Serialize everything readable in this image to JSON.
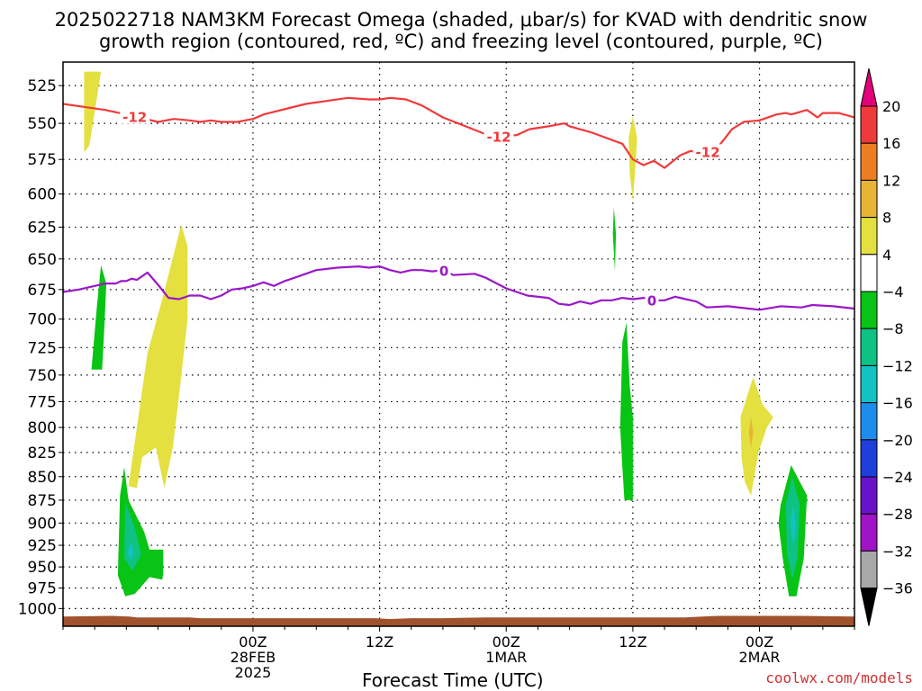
{
  "title_line1": "2025022718 NAM3KM Forecast Omega (shaded, μbar/s) for KVAD with dendritic snow",
  "title_line2": "growth region (contoured, red, ºC) and freezing level (contoured, purple, ºC)",
  "credit": "coolwx.com/models",
  "chart_data": {
    "type": "heatmap",
    "title": "2025022718 NAM3KM Forecast Omega (shaded, μbar/s) for KVAD with dendritic snow growth region (contoured, red, ºC) and freezing level (contoured, purple, ºC)",
    "xlabel": "Forecast Time (UTC)",
    "ylabel": "",
    "x_axis": {
      "unit": "forecast hour",
      "range": [
        -12,
        63
      ],
      "ticks": [
        {
          "hour": 6,
          "label1": "00Z",
          "label2": "28FEB",
          "label3": "2025"
        },
        {
          "hour": 18,
          "label1": "12Z",
          "label2": "",
          "label3": ""
        },
        {
          "hour": 30,
          "label1": "00Z",
          "label2": "1MAR",
          "label3": ""
        },
        {
          "hour": 42,
          "label1": "12Z",
          "label2": "",
          "label3": ""
        },
        {
          "hour": 54,
          "label1": "00Z",
          "label2": "2MAR",
          "label3": ""
        }
      ],
      "grid": true
    },
    "y_axis": {
      "unit": "hPa",
      "scale": "log",
      "range": [
        1022,
        510
      ],
      "ticks": [
        525,
        550,
        575,
        600,
        625,
        650,
        675,
        700,
        725,
        750,
        775,
        800,
        825,
        850,
        875,
        900,
        925,
        950,
        975,
        1000
      ],
      "grid": true
    },
    "colorbar": {
      "levels": [
        20,
        16,
        12,
        8,
        4,
        -4,
        -8,
        -12,
        -16,
        -20,
        -24,
        -28,
        -32,
        -36
      ],
      "colors": [
        "#e3007b",
        "#f0393a",
        "#ed7d23",
        "#e8b436",
        "#e3e040",
        "#ffffff",
        "#08c414",
        "#0ec284",
        "#12c2c2",
        "#1c8ced",
        "#1e3fd9",
        "#6813c9",
        "#a013c7",
        "#a8a8a8",
        "#000000"
      ]
    },
    "omega_regions": [
      {
        "level": "4",
        "color": "#e3e040",
        "points": [
          [
            -10,
            516
          ],
          [
            -8.4,
            516
          ],
          [
            -9.5,
            565
          ],
          [
            -10,
            570
          ]
        ]
      },
      {
        "level": "4",
        "color": "#e3e040",
        "points": [
          [
            -5.8,
            860
          ],
          [
            -4,
            730
          ],
          [
            -2.5,
            680
          ],
          [
            -0.8,
            623
          ],
          [
            -0.2,
            640
          ],
          [
            -0.2,
            700
          ],
          [
            -0.9,
            760
          ],
          [
            -1.6,
            820
          ],
          [
            -2.4,
            862
          ],
          [
            -3.2,
            820
          ],
          [
            -4.5,
            830
          ],
          [
            -5.0,
            862
          ]
        ]
      },
      {
        "level": "4",
        "color": "#e3e040",
        "points": [
          [
            42,
            545
          ],
          [
            42.4,
            560
          ],
          [
            42.2,
            585
          ],
          [
            42,
            605
          ],
          [
            41.7,
            585
          ],
          [
            41.6,
            560
          ]
        ]
      },
      {
        "level": "4",
        "color": "#e3e040",
        "points": [
          [
            52.2,
            790
          ],
          [
            53.4,
            752
          ],
          [
            54.3,
            778
          ],
          [
            55.3,
            790
          ],
          [
            54.7,
            800
          ],
          [
            53.9,
            825
          ],
          [
            53.2,
            870
          ],
          [
            52.6,
            855
          ],
          [
            52.3,
            830
          ]
        ]
      },
      {
        "level": "8",
        "color": "#e8b436",
        "points": [
          [
            53.2,
            790
          ],
          [
            53.4,
            805
          ],
          [
            53.2,
            820
          ],
          [
            53.0,
            805
          ]
        ]
      },
      {
        "level": "-4",
        "color": "#08c414",
        "points": [
          [
            -9.3,
            745
          ],
          [
            -8.8,
            690
          ],
          [
            -8.4,
            655
          ],
          [
            -7.9,
            670
          ],
          [
            -8.1,
            710
          ],
          [
            -8.3,
            745
          ]
        ]
      },
      {
        "level": "-4",
        "color": "#08c414",
        "points": [
          [
            -6.6,
            870
          ],
          [
            -6.2,
            840
          ],
          [
            -5.8,
            875
          ],
          [
            -4.3,
            910
          ],
          [
            -3.8,
            930
          ],
          [
            -2.5,
            930
          ],
          [
            -2.5,
            958
          ],
          [
            -2.6,
            965
          ],
          [
            -3.8,
            962
          ],
          [
            -5.2,
            982
          ],
          [
            -6.1,
            985
          ],
          [
            -6.8,
            960
          ]
        ]
      },
      {
        "level": "-8",
        "color": "#0ec284",
        "points": [
          [
            -6.1,
            877
          ],
          [
            -5.2,
            905
          ],
          [
            -4.6,
            935
          ],
          [
            -5.4,
            955
          ],
          [
            -6.2,
            940
          ]
        ]
      },
      {
        "level": "-12",
        "color": "#12c2c2",
        "points": [
          [
            -5.6,
            922
          ],
          [
            -5.3,
            933
          ],
          [
            -5.6,
            942
          ],
          [
            -5.9,
            933
          ]
        ]
      },
      {
        "level": "-4",
        "color": "#08c414",
        "points": [
          [
            40.2,
            610
          ],
          [
            40.4,
            630
          ],
          [
            40.3,
            660
          ],
          [
            40.1,
            630
          ]
        ]
      },
      {
        "level": "-4",
        "color": "#08c414",
        "points": [
          [
            41.0,
            720
          ],
          [
            41.4,
            703
          ],
          [
            41.7,
            760
          ],
          [
            42.0,
            790
          ],
          [
            42.0,
            875
          ],
          [
            41.2,
            875
          ],
          [
            41.0,
            840
          ],
          [
            40.8,
            800
          ]
        ]
      },
      {
        "level": "-4",
        "color": "#08c414",
        "points": [
          [
            56.0,
            880
          ],
          [
            57.0,
            838
          ],
          [
            58.5,
            870
          ],
          [
            58.2,
            940
          ],
          [
            57.5,
            985
          ],
          [
            56.8,
            985
          ],
          [
            56.2,
            940
          ],
          [
            55.8,
            900
          ]
        ]
      },
      {
        "level": "-8",
        "color": "#0ec284",
        "points": [
          [
            56.5,
            880
          ],
          [
            57.1,
            850
          ],
          [
            57.8,
            880
          ],
          [
            57.6,
            940
          ],
          [
            57.1,
            965
          ],
          [
            56.6,
            935
          ]
        ]
      },
      {
        "level": "-12",
        "color": "#12c2c2",
        "points": [
          [
            56.9,
            900
          ],
          [
            57.2,
            880
          ],
          [
            57.5,
            905
          ],
          [
            57.2,
            925
          ]
        ]
      }
    ],
    "terrain": {
      "color": "#a0522d",
      "points": [
        [
          -12,
          1010
        ],
        [
          -7.4,
          1009
        ],
        [
          -5.7,
          1010
        ],
        [
          -5,
          1011
        ],
        [
          0,
          1011
        ],
        [
          1,
          1012
        ],
        [
          17.5,
          1012
        ],
        [
          19,
          1013
        ],
        [
          21,
          1012
        ],
        [
          24,
          1012
        ],
        [
          28,
          1011
        ],
        [
          47,
          1011
        ],
        [
          50,
          1009
        ],
        [
          58,
          1009
        ],
        [
          63,
          1010
        ]
      ]
    },
    "series": [
      {
        "name": "-12",
        "color": "#f03a3a",
        "contour_label": "-12",
        "label_hours": [
          -5.2,
          29.3,
          49.1
        ],
        "points": [
          [
            -12,
            537
          ],
          [
            -8,
            541
          ],
          [
            -6,
            544
          ],
          [
            -3,
            549
          ],
          [
            -1.5,
            547
          ],
          [
            0,
            548
          ],
          [
            1,
            549
          ],
          [
            2,
            548
          ],
          [
            3,
            549
          ],
          [
            4.5,
            549
          ],
          [
            6,
            547
          ],
          [
            7,
            544
          ],
          [
            11,
            537
          ],
          [
            15,
            533
          ],
          [
            17,
            534
          ],
          [
            18,
            534
          ],
          [
            19,
            533
          ],
          [
            20.5,
            534
          ],
          [
            22,
            538
          ],
          [
            24,
            546
          ],
          [
            26.5,
            553
          ],
          [
            27.9,
            557
          ],
          [
            29,
            559
          ],
          [
            31,
            558
          ],
          [
            32.2,
            554
          ],
          [
            34,
            552
          ],
          [
            35.5,
            550
          ],
          [
            36,
            552
          ],
          [
            38,
            556
          ],
          [
            41,
            564
          ],
          [
            42,
            575
          ],
          [
            43,
            579
          ],
          [
            44,
            576
          ],
          [
            45,
            581
          ],
          [
            46.5,
            572
          ],
          [
            47.5,
            569
          ],
          [
            48.5,
            571
          ],
          [
            50,
            567
          ],
          [
            51.4,
            554
          ],
          [
            52.5,
            549
          ],
          [
            54,
            548
          ],
          [
            55.6,
            544
          ],
          [
            56.5,
            543
          ],
          [
            57,
            544
          ],
          [
            58.5,
            541
          ],
          [
            59.5,
            546
          ],
          [
            60,
            543
          ],
          [
            61.5,
            543
          ],
          [
            63,
            546
          ]
        ]
      },
      {
        "name": "0",
        "color": "#9a18c8",
        "contour_label": "0",
        "label_hours": [
          24.1,
          43.8
        ],
        "points": [
          [
            -12,
            677
          ],
          [
            -10.5,
            675
          ],
          [
            -9,
            672
          ],
          [
            -8,
            670
          ],
          [
            -7,
            670
          ],
          [
            -6.5,
            668
          ],
          [
            -6,
            668
          ],
          [
            -5.5,
            666
          ],
          [
            -5,
            667
          ],
          [
            -4,
            661
          ],
          [
            -3,
            671
          ],
          [
            -2,
            682
          ],
          [
            -1,
            683
          ],
          [
            0,
            680
          ],
          [
            1,
            680
          ],
          [
            2,
            683
          ],
          [
            3,
            680
          ],
          [
            4,
            675
          ],
          [
            5,
            674
          ],
          [
            6,
            672
          ],
          [
            7,
            669
          ],
          [
            8,
            672
          ],
          [
            9,
            668
          ],
          [
            10,
            665
          ],
          [
            12,
            659
          ],
          [
            14,
            657
          ],
          [
            16,
            656
          ],
          [
            17,
            657
          ],
          [
            18,
            656
          ],
          [
            19,
            659
          ],
          [
            20,
            661
          ],
          [
            21,
            659
          ],
          [
            22,
            659
          ],
          [
            23,
            660
          ],
          [
            24,
            659
          ],
          [
            25,
            663
          ],
          [
            27,
            662
          ],
          [
            28,
            665
          ],
          [
            30,
            674
          ],
          [
            32,
            680
          ],
          [
            34,
            682
          ],
          [
            35,
            687
          ],
          [
            36,
            688
          ],
          [
            37,
            685
          ],
          [
            38,
            687
          ],
          [
            39,
            684
          ],
          [
            40,
            684
          ],
          [
            41,
            682
          ],
          [
            42,
            683
          ],
          [
            43,
            682
          ],
          [
            44,
            684
          ],
          [
            45,
            684
          ],
          [
            46,
            681
          ],
          [
            47,
            683
          ],
          [
            48,
            685
          ],
          [
            49,
            690
          ],
          [
            51,
            689
          ],
          [
            53,
            691
          ],
          [
            54,
            692
          ],
          [
            56,
            689
          ],
          [
            58,
            690
          ],
          [
            59,
            688
          ],
          [
            61,
            689
          ],
          [
            63,
            691
          ]
        ]
      }
    ]
  }
}
